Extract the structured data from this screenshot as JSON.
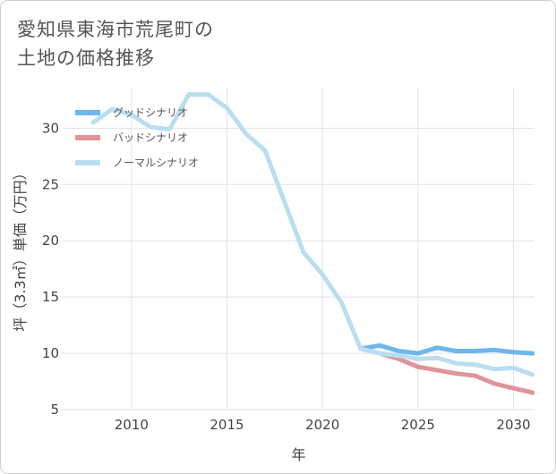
{
  "title": "愛知県東海市荒尾町の\n土地の価格推移",
  "chart_data": {
    "type": "line",
    "xlabel": "年",
    "ylabel": "坪（3.3㎡）単価（万円）",
    "xlim": [
      2006.4,
      2031.1
    ],
    "ylim": [
      5,
      33.6
    ],
    "xticks": [
      2010,
      2015,
      2020,
      2025,
      2030
    ],
    "yticks": [
      5,
      10,
      15,
      20,
      25,
      30
    ],
    "grid": true,
    "legend_position": "top-left",
    "series": [
      {
        "name": "グッドシナリオ",
        "color": "#6cb7ec",
        "x": [
          2022,
          2023,
          2024,
          2025,
          2026,
          2027,
          2028,
          2029,
          2030,
          2031
        ],
        "y": [
          10.4,
          10.7,
          10.2,
          10.0,
          10.5,
          10.2,
          10.2,
          10.3,
          10.1,
          10.0
        ]
      },
      {
        "name": "バッドシナリオ",
        "color": "#e0939a",
        "x": [
          2022,
          2023,
          2024,
          2025,
          2026,
          2027,
          2028,
          2029,
          2030,
          2031
        ],
        "y": [
          10.4,
          10.0,
          9.5,
          8.8,
          8.5,
          8.2,
          8.0,
          7.3,
          6.9,
          6.5
        ]
      },
      {
        "name": "ノーマルシナリオ",
        "color": "#badeef",
        "x": [
          2008,
          2009,
          2010,
          2011,
          2012,
          2013,
          2014,
          2015,
          2016,
          2017,
          2018,
          2019,
          2020,
          2021,
          2022,
          2023,
          2024,
          2025,
          2026,
          2027,
          2028,
          2029,
          2030,
          2031
        ],
        "y": [
          30.5,
          31.7,
          31.2,
          30.1,
          29.9,
          33.0,
          33.0,
          31.8,
          29.5,
          28.0,
          23.5,
          19.0,
          17.0,
          14.5,
          10.4,
          10.0,
          9.8,
          9.5,
          9.6,
          9.1,
          9.0,
          8.6,
          8.7,
          8.1
        ]
      }
    ]
  }
}
